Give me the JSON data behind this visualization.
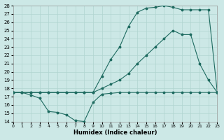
{
  "xlabel": "Humidex (Indice chaleur)",
  "background_color": "#cce8e6",
  "grid_color": "#b0d4d0",
  "line_color": "#1e6b60",
  "xlim": [
    0,
    23
  ],
  "ylim": [
    14,
    28
  ],
  "xticks": [
    0,
    1,
    2,
    3,
    4,
    5,
    6,
    7,
    8,
    9,
    10,
    11,
    12,
    13,
    14,
    15,
    16,
    17,
    18,
    19,
    20,
    21,
    22,
    23
  ],
  "yticks": [
    14,
    15,
    16,
    17,
    18,
    19,
    20,
    21,
    22,
    23,
    24,
    25,
    26,
    27,
    28
  ],
  "curve_bottom_x": [
    0,
    1,
    2,
    3,
    4,
    5,
    6,
    7,
    8,
    9,
    10,
    11,
    12,
    13,
    14,
    15,
    16,
    17,
    18,
    19,
    20,
    21,
    22,
    23
  ],
  "curve_bottom_y": [
    17.5,
    17.5,
    17.2,
    16.8,
    15.2,
    15.1,
    14.8,
    14.1,
    14.0,
    16.3,
    17.3,
    17.4,
    17.5,
    17.5,
    17.5,
    17.5,
    17.5,
    17.5,
    17.5,
    17.5,
    17.5,
    17.5,
    17.5,
    17.5
  ],
  "curve_mid_x": [
    0,
    1,
    2,
    3,
    4,
    5,
    6,
    7,
    8,
    9,
    10,
    11,
    12,
    13,
    14,
    15,
    16,
    17,
    18,
    19,
    20,
    21,
    22,
    23
  ],
  "curve_mid_y": [
    17.5,
    17.5,
    17.5,
    17.5,
    17.5,
    17.5,
    17.5,
    17.5,
    17.5,
    17.5,
    18.0,
    18.5,
    19.0,
    19.8,
    21.0,
    22.0,
    23.0,
    24.0,
    25.0,
    24.5,
    24.5,
    21.0,
    19.0,
    17.5
  ],
  "curve_top_x": [
    0,
    1,
    2,
    3,
    4,
    5,
    6,
    7,
    8,
    9,
    10,
    11,
    12,
    13,
    14,
    15,
    16,
    17,
    18,
    19,
    20,
    21,
    22,
    23
  ],
  "curve_top_y": [
    17.5,
    17.5,
    17.5,
    17.5,
    17.5,
    17.5,
    17.5,
    17.5,
    17.5,
    17.5,
    19.5,
    21.5,
    23.0,
    25.5,
    27.2,
    27.7,
    27.8,
    28.0,
    27.8,
    27.5,
    27.5,
    27.5,
    27.5,
    17.5
  ]
}
